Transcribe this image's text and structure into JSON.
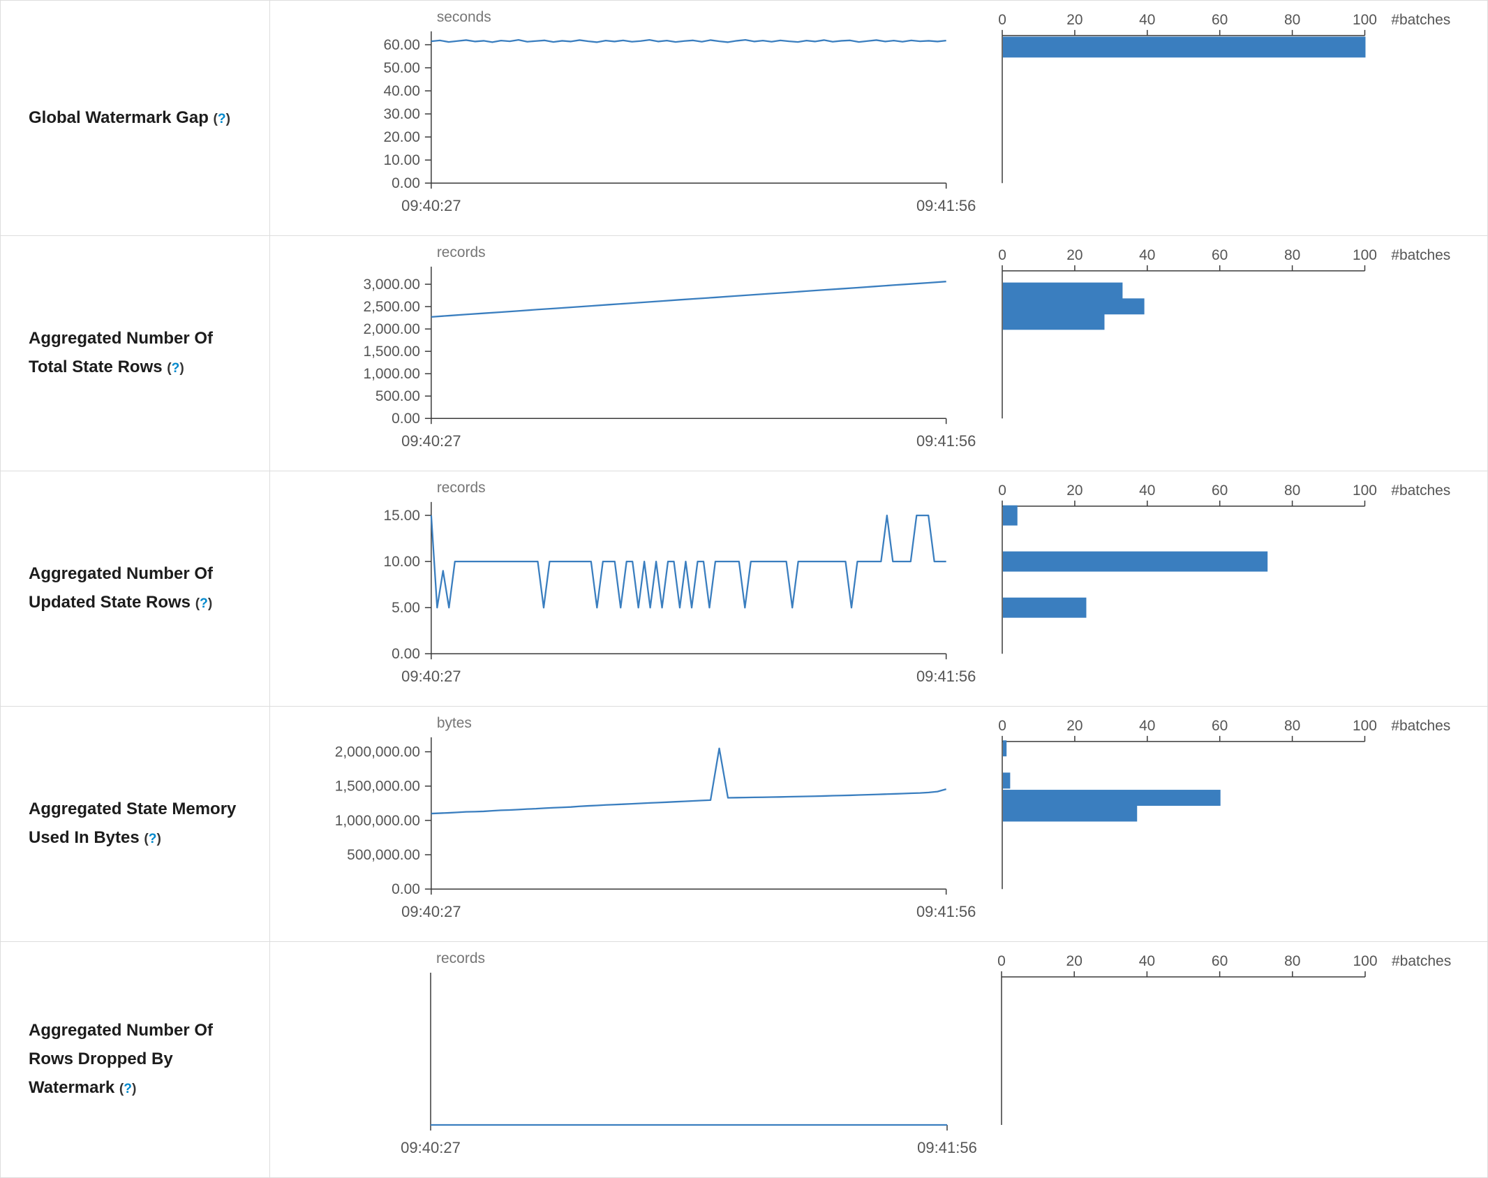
{
  "colors": {
    "accent": "#3a7ebf",
    "axis": "#3a3a3a",
    "tick_text": "#555555",
    "unit_text": "#767676",
    "help_link": "#0088cc",
    "border": "#dddddd",
    "label_text": "#1c1c1c"
  },
  "help": {
    "open": "(",
    "q": "?",
    "close": ")"
  },
  "chart_data": [
    {
      "metric": "Global Watermark Gap",
      "timeline": {
        "type": "line",
        "unit": "seconds",
        "x_ticks": [
          "09:40:27",
          "09:41:56"
        ],
        "ylim": [
          0,
          64
        ],
        "y_ticks": [
          {
            "v": 0,
            "label": "0.00"
          },
          {
            "v": 10,
            "label": "10.00"
          },
          {
            "v": 20,
            "label": "20.00"
          },
          {
            "v": 30,
            "label": "30.00"
          },
          {
            "v": 40,
            "label": "40.00"
          },
          {
            "v": 50,
            "label": "50.00"
          },
          {
            "v": 60,
            "label": "60.00"
          }
        ],
        "values": [
          61.5,
          61.9,
          61.2,
          61.6,
          62.0,
          61.4,
          61.7,
          61.1,
          61.8,
          61.5,
          62.1,
          61.3,
          61.6,
          61.9,
          61.2,
          61.7,
          61.4,
          62.0,
          61.5,
          61.1,
          61.8,
          61.4,
          61.9,
          61.3,
          61.6,
          62.1,
          61.4,
          61.8,
          61.2,
          61.6,
          61.9,
          61.3,
          62.0,
          61.5,
          61.1,
          61.7,
          62.1,
          61.4,
          61.8,
          61.3,
          61.9,
          61.5,
          61.2,
          61.8,
          61.4,
          62.0,
          61.3,
          61.7,
          61.9,
          61.2,
          61.6,
          62.0,
          61.4,
          61.8,
          61.3,
          61.9,
          61.5,
          61.7,
          61.4,
          61.8
        ]
      },
      "histogram": {
        "type": "bar",
        "unit": "#batches",
        "xlim": [
          0,
          100
        ],
        "x_ticks": [
          0,
          20,
          40,
          60,
          80,
          100
        ],
        "bar_thickness": 30,
        "bars": [
          {
            "level": 59,
            "count": 100
          }
        ]
      }
    },
    {
      "metric": "Aggregated Number Of Total State Rows",
      "timeline": {
        "type": "line",
        "unit": "records",
        "x_ticks": [
          "09:40:27",
          "09:41:56"
        ],
        "ylim": [
          0,
          3300
        ],
        "y_ticks": [
          {
            "v": 0,
            "label": "0.00"
          },
          {
            "v": 500,
            "label": "500.00"
          },
          {
            "v": 1000,
            "label": "1,000.00"
          },
          {
            "v": 1500,
            "label": "1,500.00"
          },
          {
            "v": 2000,
            "label": "2,000.00"
          },
          {
            "v": 2500,
            "label": "2,500.00"
          },
          {
            "v": 3000,
            "label": "3,000.00"
          }
        ],
        "values": [
          2270,
          2297,
          2325,
          2352,
          2379,
          2406,
          2434,
          2461,
          2488,
          2515,
          2543,
          2570,
          2597,
          2624,
          2652,
          2679,
          2706,
          2733,
          2761,
          2788,
          2815,
          2842,
          2870,
          2897,
          2924,
          2951,
          2979,
          3006,
          3033,
          3060
        ]
      },
      "histogram": {
        "type": "bar",
        "unit": "#batches",
        "xlim": [
          0,
          100
        ],
        "x_ticks": [
          0,
          20,
          40,
          60,
          80,
          100
        ],
        "bar_thickness": 23,
        "bars": [
          {
            "level": 2860,
            "count": 33
          },
          {
            "level": 2505,
            "count": 39
          },
          {
            "level": 2160,
            "count": 28
          }
        ]
      }
    },
    {
      "metric": "Aggregated Number Of Updated State Rows",
      "timeline": {
        "type": "line",
        "unit": "records",
        "x_ticks": [
          "09:40:27",
          "09:41:56"
        ],
        "ylim": [
          0,
          16
        ],
        "y_ticks": [
          {
            "v": 0,
            "label": "0.00"
          },
          {
            "v": 5,
            "label": "5.00"
          },
          {
            "v": 10,
            "label": "10.00"
          },
          {
            "v": 15,
            "label": "15.00"
          }
        ],
        "values": [
          15,
          5,
          9,
          5,
          10,
          10,
          10,
          10,
          10,
          10,
          10,
          10,
          10,
          10,
          10,
          10,
          10,
          10,
          10,
          5,
          10,
          10,
          10,
          10,
          10,
          10,
          10,
          10,
          5,
          10,
          10,
          10,
          5,
          10,
          10,
          5,
          10,
          5,
          10,
          5,
          10,
          10,
          5,
          10,
          5,
          10,
          10,
          5,
          10,
          10,
          10,
          10,
          10,
          5,
          10,
          10,
          10,
          10,
          10,
          10,
          10,
          5,
          10,
          10,
          10,
          10,
          10,
          10,
          10,
          10,
          10,
          5,
          10,
          10,
          10,
          10,
          10,
          15,
          10,
          10,
          10,
          10,
          15,
          15,
          15,
          10,
          10,
          10
        ]
      },
      "histogram": {
        "type": "bar",
        "unit": "#batches",
        "xlim": [
          0,
          100
        ],
        "x_ticks": [
          0,
          20,
          40,
          60,
          80,
          100
        ],
        "bar_thickness": 29,
        "bars": [
          {
            "level": 15,
            "count": 4
          },
          {
            "level": 10,
            "count": 73
          },
          {
            "level": 5,
            "count": 23
          }
        ]
      }
    },
    {
      "metric": "Aggregated State Memory Used In Bytes",
      "timeline": {
        "type": "line",
        "unit": "bytes",
        "x_ticks": [
          "09:40:27",
          "09:41:56"
        ],
        "ylim": [
          0,
          2150000
        ],
        "y_ticks": [
          {
            "v": 0,
            "label": "0.00"
          },
          {
            "v": 500000,
            "label": "500,000.00"
          },
          {
            "v": 1000000,
            "label": "1,000,000.00"
          },
          {
            "v": 1500000,
            "label": "1,500,000.00"
          },
          {
            "v": 2000000,
            "label": "2,000,000.00"
          }
        ],
        "values": [
          1100000,
          1105000,
          1110000,
          1118000,
          1125000,
          1128000,
          1132000,
          1140000,
          1148000,
          1152000,
          1158000,
          1165000,
          1170000,
          1178000,
          1185000,
          1190000,
          1196000,
          1205000,
          1212000,
          1218000,
          1225000,
          1230000,
          1236000,
          1242000,
          1248000,
          1255000,
          1260000,
          1266000,
          1272000,
          1278000,
          1284000,
          1290000,
          1296000,
          2050000,
          1330000,
          1332000,
          1334000,
          1336000,
          1338000,
          1340000,
          1342000,
          1345000,
          1348000,
          1350000,
          1353000,
          1356000,
          1360000,
          1363000,
          1366000,
          1370000,
          1374000,
          1378000,
          1382000,
          1386000,
          1390000,
          1395000,
          1400000,
          1408000,
          1420000,
          1455000
        ]
      },
      "histogram": {
        "type": "bar",
        "unit": "#batches",
        "xlim": [
          0,
          100
        ],
        "x_ticks": [
          0,
          20,
          40,
          60,
          80,
          100
        ],
        "bar_thickness": 23,
        "bars": [
          {
            "level": 2050000,
            "count": 1
          },
          {
            "level": 1580000,
            "count": 2
          },
          {
            "level": 1330000,
            "count": 60
          },
          {
            "level": 1100000,
            "count": 37
          }
        ]
      }
    },
    {
      "metric": "Aggregated Number Of Rows Dropped By Watermark",
      "timeline": {
        "type": "line",
        "unit": "records",
        "x_ticks": [
          "09:40:27",
          "09:41:56"
        ],
        "ylim": [
          0,
          1
        ],
        "y_ticks": [],
        "values": [
          0,
          0,
          0,
          0,
          0,
          0,
          0,
          0,
          0,
          0,
          0,
          0,
          0,
          0,
          0,
          0,
          0,
          0,
          0,
          0,
          0,
          0,
          0,
          0,
          0,
          0,
          0,
          0,
          0,
          0
        ]
      },
      "histogram": {
        "type": "bar",
        "unit": "#batches",
        "xlim": [
          0,
          100
        ],
        "x_ticks": [
          0,
          20,
          40,
          60,
          80,
          100
        ],
        "bar_thickness": 23,
        "bars": []
      }
    }
  ]
}
